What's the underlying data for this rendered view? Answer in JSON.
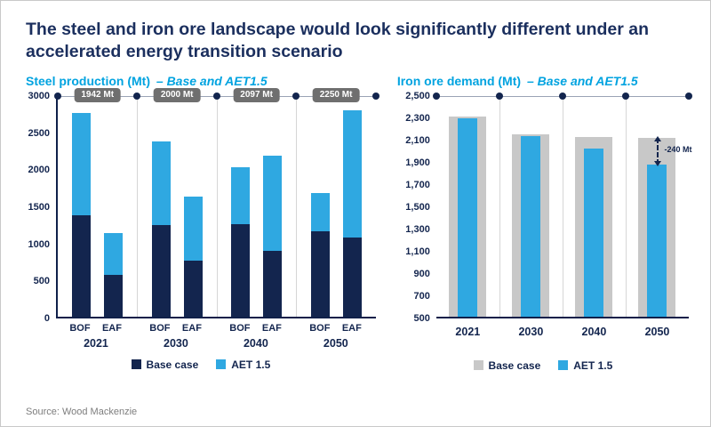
{
  "header": {
    "title": "The steel and iron ore landscape would look significantly different under an accelerated energy transition scenario"
  },
  "source": "Source: Wood Mackenzie",
  "colors": {
    "title_navy": "#1b2f5e",
    "bar_navy": "#13254e",
    "bar_blue": "#2fa8e1",
    "bar_gray": "#c8c8c8",
    "subtitle_blue": "#00a3e0",
    "annotation_gray": "#6f6f6f"
  },
  "chart_data": [
    {
      "id": "steel-production",
      "type": "bar",
      "stacked": true,
      "subtitle_main": "Steel production (Mt)",
      "subtitle_note": "– Base and AET1.5",
      "ylim": [
        0,
        3000
      ],
      "ytick_labels": [
        "3000",
        "2500",
        "2000",
        "1500",
        "1000",
        "500",
        "0"
      ],
      "groups": [
        "2021",
        "2030",
        "2040",
        "2050"
      ],
      "bar_labels": [
        "BOF",
        "EAF"
      ],
      "series": [
        {
          "name": "Base case",
          "color": "#13254e",
          "values": [
            [
              1370,
              560
            ],
            [
              1230,
              760
            ],
            [
              1245,
              890
            ],
            [
              1150,
              1070
            ]
          ]
        },
        {
          "name": "AET 1.5",
          "color": "#2fa8e1",
          "values": [
            [
              1375,
              565
            ],
            [
              1130,
              855
            ],
            [
              770,
              1280
            ],
            [
              520,
              1710
            ]
          ]
        }
      ],
      "totals_annotations": [
        "1942 Mt",
        "2000 Mt",
        "2097 Mt",
        "2250 Mt"
      ],
      "legend": [
        "Base case",
        "AET 1.5"
      ],
      "grid": false,
      "legend_position": "bottom"
    },
    {
      "id": "iron-ore-demand",
      "type": "bar",
      "overlay": true,
      "subtitle_main": "Iron ore demand (Mt)",
      "subtitle_note": "– Base and AET1.5",
      "ylim": [
        500,
        2500
      ],
      "ytick_labels": [
        "2,500",
        "2,300",
        "2,100",
        "1,900",
        "1,700",
        "1,500",
        "1,300",
        "1,100",
        "900",
        "700",
        "500"
      ],
      "categories": [
        "2021",
        "2030",
        "2040",
        "2050"
      ],
      "series": [
        {
          "name": "Base case",
          "color": "#c8c8c8",
          "values": [
            2300,
            2140,
            2115,
            2110
          ]
        },
        {
          "name": "AET 1.5",
          "color": "#2fa8e1",
          "values": [
            2285,
            2120,
            2015,
            1870
          ]
        }
      ],
      "annotation": {
        "category": "2050",
        "label": "-240 Mt"
      },
      "legend": [
        "Base case",
        "AET 1.5"
      ],
      "grid": false,
      "legend_position": "bottom"
    }
  ]
}
